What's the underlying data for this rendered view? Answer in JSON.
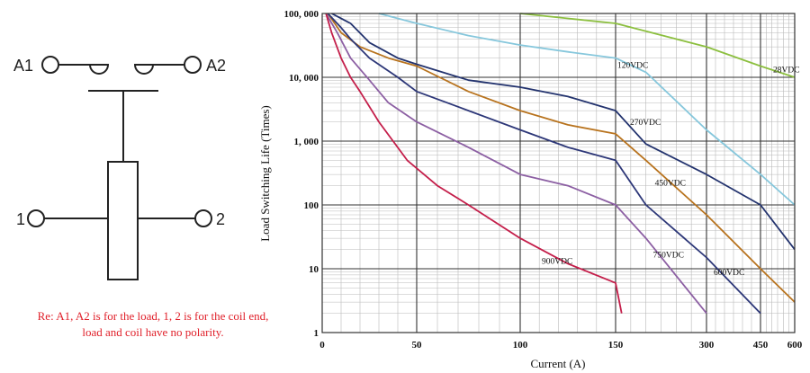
{
  "diagram": {
    "terminals": {
      "a1": "A1",
      "a2": "A2",
      "coil1": "1",
      "coil2": "2"
    },
    "note_line1": "Re: A1, A2 is for the load, 1, 2 is for the coil end,",
    "note_line2": "load and coil have no polarity."
  },
  "chart_data": {
    "type": "line",
    "title": "",
    "xlabel": "Current (A)",
    "ylabel": "Load Switching Life (Times)",
    "y_scale": "log",
    "ylim": [
      1,
      100000
    ],
    "y_ticks": [
      "100, 000",
      "10, 000",
      "1, 000",
      "100",
      "10",
      "1"
    ],
    "x_ticks": [
      "0",
      "50",
      "100",
      "150",
      "300",
      "450",
      "600"
    ],
    "x_scale_note": "piecewise: 0-150 A over first segments, 150-600 A compressed",
    "grid": true,
    "series": [
      {
        "name": "28VDC",
        "color": "#8cbf3f",
        "points": [
          [
            100,
            100000
          ],
          [
            150,
            70000
          ],
          [
            300,
            30000
          ],
          [
            450,
            15000
          ],
          [
            600,
            10000
          ]
        ]
      },
      {
        "name": "120VDC",
        "color": "#86c7dc",
        "points": [
          [
            30,
            100000
          ],
          [
            50,
            70000
          ],
          [
            75,
            45000
          ],
          [
            100,
            32000
          ],
          [
            125,
            25000
          ],
          [
            150,
            20000
          ],
          [
            200,
            12000
          ],
          [
            300,
            1500
          ],
          [
            450,
            300
          ],
          [
            600,
            100
          ]
        ]
      },
      {
        "name": "270VDC",
        "color": "#23336e",
        "points": [
          [
            5,
            100000
          ],
          [
            15,
            70000
          ],
          [
            25,
            35000
          ],
          [
            40,
            20000
          ],
          [
            50,
            16000
          ],
          [
            75,
            9000
          ],
          [
            100,
            7000
          ],
          [
            125,
            5000
          ],
          [
            150,
            3000
          ],
          [
            200,
            900
          ],
          [
            300,
            300
          ],
          [
            450,
            100
          ],
          [
            600,
            20
          ]
        ]
      },
      {
        "name": "450VDC",
        "color": "#b8731e",
        "points": [
          [
            3,
            100000
          ],
          [
            10,
            50000
          ],
          [
            20,
            30000
          ],
          [
            35,
            20000
          ],
          [
            50,
            15000
          ],
          [
            75,
            6000
          ],
          [
            100,
            3000
          ],
          [
            125,
            1800
          ],
          [
            150,
            1300
          ],
          [
            200,
            500
          ],
          [
            300,
            70
          ],
          [
            450,
            10
          ],
          [
            600,
            3
          ]
        ]
      },
      {
        "name": "600VDC",
        "color": "#2d3778",
        "points": [
          [
            3,
            100000
          ],
          [
            10,
            60000
          ],
          [
            15,
            40000
          ],
          [
            25,
            20000
          ],
          [
            40,
            10000
          ],
          [
            50,
            6000
          ],
          [
            75,
            3000
          ],
          [
            100,
            1500
          ],
          [
            125,
            800
          ],
          [
            150,
            500
          ],
          [
            200,
            100
          ],
          [
            300,
            15
          ],
          [
            450,
            2
          ]
        ]
      },
      {
        "name": "750VDC",
        "color": "#8c5fa3",
        "points": [
          [
            2,
            100000
          ],
          [
            8,
            50000
          ],
          [
            15,
            20000
          ],
          [
            25,
            9000
          ],
          [
            35,
            4000
          ],
          [
            50,
            2000
          ],
          [
            75,
            800
          ],
          [
            100,
            300
          ],
          [
            125,
            200
          ],
          [
            150,
            100
          ],
          [
            200,
            30
          ],
          [
            300,
            2
          ]
        ]
      },
      {
        "name": "900VDC",
        "color": "#c41e4a",
        "points": [
          [
            2,
            100000
          ],
          [
            5,
            50000
          ],
          [
            10,
            20000
          ],
          [
            15,
            10000
          ],
          [
            20,
            6000
          ],
          [
            30,
            2000
          ],
          [
            45,
            500
          ],
          [
            60,
            200
          ],
          [
            75,
            100
          ],
          [
            100,
            30
          ],
          [
            125,
            12
          ],
          [
            150,
            6
          ],
          [
            160,
            2
          ]
        ]
      }
    ]
  }
}
